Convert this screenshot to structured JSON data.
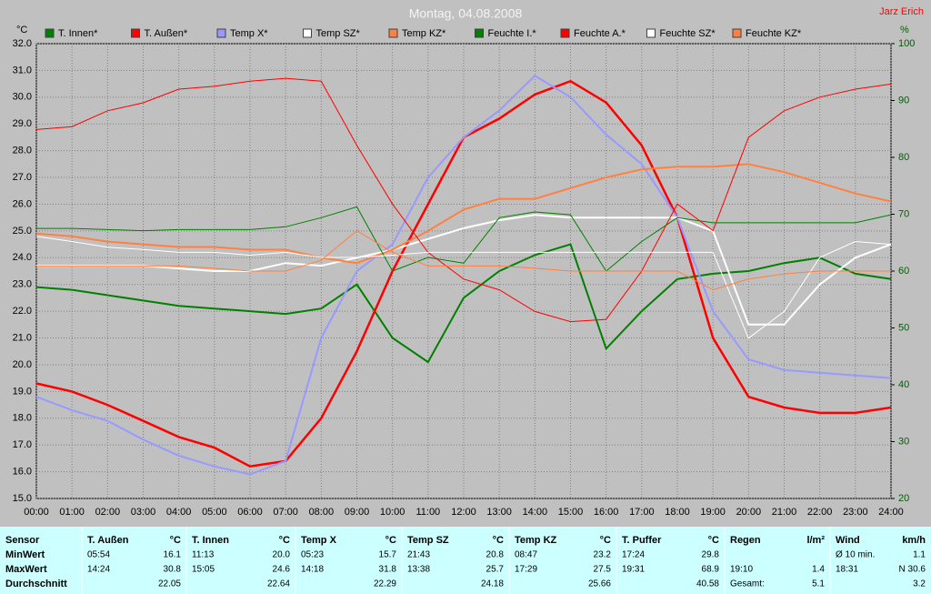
{
  "chart_data": {
    "type": "line",
    "title": "Montag, 04.08.2008",
    "author": "Jarz Erich",
    "ylabel": "°C",
    "y2label": "%",
    "x": [
      0,
      1,
      2,
      3,
      4,
      5,
      6,
      7,
      8,
      9,
      10,
      11,
      12,
      13,
      14,
      15,
      16,
      17,
      18,
      19,
      20,
      21,
      22,
      23,
      24
    ],
    "xlim": [
      0,
      24
    ],
    "xticks": [
      {
        "value": 0,
        "label": "00:00"
      },
      {
        "value": 1,
        "label": "01:00"
      },
      {
        "value": 2,
        "label": "02:00"
      },
      {
        "value": 3,
        "label": "03:00"
      },
      {
        "value": 4,
        "label": "04:00"
      },
      {
        "value": 5,
        "label": "05:00"
      },
      {
        "value": 6,
        "label": "06:00"
      },
      {
        "value": 7,
        "label": "07:00"
      },
      {
        "value": 8,
        "label": "08:00"
      },
      {
        "value": 9,
        "label": "09:00"
      },
      {
        "value": 10,
        "label": "10:00"
      },
      {
        "value": 11,
        "label": "11:00"
      },
      {
        "value": 12,
        "label": "12:00"
      },
      {
        "value": 13,
        "label": "13:00"
      },
      {
        "value": 14,
        "label": "14:00"
      },
      {
        "value": 15,
        "label": "15:00"
      },
      {
        "value": 16,
        "label": "16:00"
      },
      {
        "value": 17,
        "label": "17:00"
      },
      {
        "value": 18,
        "label": "18:00"
      },
      {
        "value": 19,
        "label": "19:00"
      },
      {
        "value": 20,
        "label": "20:00"
      },
      {
        "value": 21,
        "label": "21:00"
      },
      {
        "value": 22,
        "label": "22:00"
      },
      {
        "value": 23,
        "label": "23:00"
      },
      {
        "value": 24,
        "label": "24:00"
      }
    ],
    "ylim": [
      15,
      32
    ],
    "yticks": [
      {
        "value": 15,
        "label": "15.0"
      },
      {
        "value": 16,
        "label": "16.0"
      },
      {
        "value": 17,
        "label": "17.0"
      },
      {
        "value": 18,
        "label": "18.0"
      },
      {
        "value": 19,
        "label": "19.0"
      },
      {
        "value": 20,
        "label": "20.0"
      },
      {
        "value": 21,
        "label": "21.0"
      },
      {
        "value": 22,
        "label": "22.0"
      },
      {
        "value": 23,
        "label": "23.0"
      },
      {
        "value": 24,
        "label": "24.0"
      },
      {
        "value": 25,
        "label": "25.0"
      },
      {
        "value": 26,
        "label": "26.0"
      },
      {
        "value": 27,
        "label": "27.0"
      },
      {
        "value": 28,
        "label": "28.0"
      },
      {
        "value": 29,
        "label": "29.0"
      },
      {
        "value": 30,
        "label": "30.0"
      },
      {
        "value": 31,
        "label": "31.0"
      },
      {
        "value": 32,
        "label": "32.0"
      }
    ],
    "y2lim": [
      20,
      100
    ],
    "y2ticks": [
      20,
      30,
      40,
      50,
      60,
      70,
      80,
      90,
      100
    ],
    "grid": true,
    "series": [
      {
        "name": "T. Innen*",
        "color": "#008000",
        "width": 2,
        "values": [
          22.9,
          22.8,
          22.6,
          22.4,
          22.2,
          22.1,
          22.0,
          21.9,
          22.1,
          23.0,
          21.0,
          20.1,
          22.5,
          23.5,
          24.1,
          24.5,
          20.6,
          22.0,
          23.2,
          23.4,
          23.5,
          23.8,
          24.0,
          23.4,
          23.2
        ]
      },
      {
        "name": "T. Außen*",
        "color": "#ff0000",
        "width": 2.5,
        "values": [
          19.3,
          19.0,
          18.5,
          17.9,
          17.3,
          16.9,
          16.2,
          16.4,
          18.0,
          20.5,
          23.5,
          26.0,
          28.5,
          29.2,
          30.1,
          30.6,
          29.8,
          28.2,
          25.5,
          21.0,
          18.8,
          18.4,
          18.2,
          18.2,
          18.4
        ]
      },
      {
        "name": "Temp X*",
        "color": "#9999ff",
        "width": 2,
        "values": [
          18.8,
          18.3,
          17.9,
          17.2,
          16.6,
          16.2,
          15.9,
          16.4,
          21.0,
          23.5,
          24.5,
          27.0,
          28.5,
          29.5,
          30.8,
          30.0,
          28.6,
          27.5,
          25.5,
          22.0,
          20.2,
          19.8,
          19.7,
          19.6,
          19.5
        ]
      },
      {
        "name": "Temp SZ*",
        "color": "#ffffff",
        "width": 2,
        "values": [
          23.7,
          23.7,
          23.7,
          23.7,
          23.6,
          23.5,
          23.5,
          23.8,
          23.7,
          24.0,
          24.3,
          24.7,
          25.1,
          25.4,
          25.6,
          25.5,
          25.5,
          25.5,
          25.5,
          25.0,
          21.5,
          21.5,
          23.0,
          24.0,
          24.5
        ]
      },
      {
        "name": "Temp KZ*",
        "color": "#ff8040",
        "width": 2,
        "values": [
          24.9,
          24.8,
          24.6,
          24.5,
          24.4,
          24.4,
          24.3,
          24.3,
          24.0,
          23.8,
          24.3,
          25.0,
          25.8,
          26.2,
          26.2,
          26.6,
          27.0,
          27.3,
          27.4,
          27.4,
          27.5,
          27.2,
          26.8,
          26.4,
          26.1
        ]
      },
      {
        "name": "Feuchte I.*",
        "color": "#008000",
        "width": 1,
        "axis": "y2",
        "values": [
          67.5,
          67.5,
          67.3,
          67.1,
          67.3,
          67.3,
          67.3,
          67.8,
          69.4,
          71.3,
          60,
          62.4,
          61.4,
          69.4,
          70.4,
          69.9,
          60,
          65.2,
          69.4,
          68.5,
          68.5,
          68.5,
          68.5,
          68.5,
          69.9
        ]
      },
      {
        "name": "Feuchte A.*",
        "color": "#ff0000",
        "width": 1,
        "axis": "y2",
        "values": [
          84.9,
          85.4,
          88.2,
          89.6,
          92.0,
          92.5,
          93.4,
          93.9,
          93.4,
          82.1,
          71.8,
          63.3,
          58.6,
          56.7,
          52.9,
          51.1,
          51.5,
          60.0,
          71.8,
          67.1,
          83.5,
          88.2,
          90.6,
          92.0,
          92.9
        ]
      },
      {
        "name": "Feuchte SZ*",
        "color": "#ffffff",
        "width": 1,
        "axis": "y2",
        "values": [
          66.1,
          65.2,
          64.2,
          63.8,
          63.3,
          63.3,
          62.8,
          63.3,
          62.4,
          62.4,
          62.8,
          63.3,
          63.3,
          63.3,
          63.3,
          63.3,
          63.3,
          63.3,
          63.3,
          63.3,
          48.2,
          52.9,
          62.4,
          65.2,
          64.7
        ]
      },
      {
        "name": "Feuchte KZ*",
        "color": "#ff8040",
        "width": 1,
        "axis": "y2",
        "values": [
          60.9,
          60.9,
          60.9,
          60.9,
          60.9,
          60.5,
          60.0,
          60.0,
          61.9,
          67.1,
          63.3,
          60.9,
          60.9,
          60.9,
          60.5,
          60.0,
          60.0,
          60.0,
          60.0,
          56.7,
          58.6,
          59.5,
          60.0,
          60.0,
          60.0
        ]
      }
    ]
  },
  "table": {
    "columns": [
      {
        "name": "Sensor"
      },
      {
        "name": "T. Außen",
        "unit": "°C"
      },
      {
        "name": "T. Innen",
        "unit": "°C"
      },
      {
        "name": "Temp X",
        "unit": "°C"
      },
      {
        "name": "Temp SZ",
        "unit": "°C"
      },
      {
        "name": "Temp KZ",
        "unit": "°C"
      },
      {
        "name": "T. Puffer",
        "unit": "°C"
      },
      {
        "name": "Regen",
        "unit": "l/m²"
      },
      {
        "name": "Wind",
        "unit": "km/h"
      }
    ],
    "rows": [
      {
        "label": "MinWert",
        "cells": [
          [
            "05:54",
            "16.1"
          ],
          [
            "11:13",
            "20.0"
          ],
          [
            "05:23",
            "15.7"
          ],
          [
            "21:43",
            "20.8"
          ],
          [
            "08:47",
            "23.2"
          ],
          [
            "17:24",
            "29.8"
          ],
          [
            null,
            null
          ],
          [
            "Ø 10 min.",
            "1.1"
          ]
        ]
      },
      {
        "label": "MaxWert",
        "cells": [
          [
            "14:24",
            "30.8"
          ],
          [
            "15:05",
            "24.6"
          ],
          [
            "14:18",
            "31.8"
          ],
          [
            "13:38",
            "25.7"
          ],
          [
            "17:29",
            "27.5"
          ],
          [
            "19:31",
            "68.9"
          ],
          [
            "19:10",
            "1.4"
          ],
          [
            "18:31",
            "N 30.6"
          ]
        ]
      },
      {
        "label": "Durchschnitt",
        "cells": [
          [
            null,
            "22.05"
          ],
          [
            null,
            "22.64"
          ],
          [
            null,
            "22.29"
          ],
          [
            null,
            "24.18"
          ],
          [
            null,
            "25.66"
          ],
          [
            null,
            "40.58"
          ],
          [
            "Gesamt:",
            "5.1"
          ],
          [
            null,
            "3.2"
          ]
        ]
      }
    ]
  }
}
